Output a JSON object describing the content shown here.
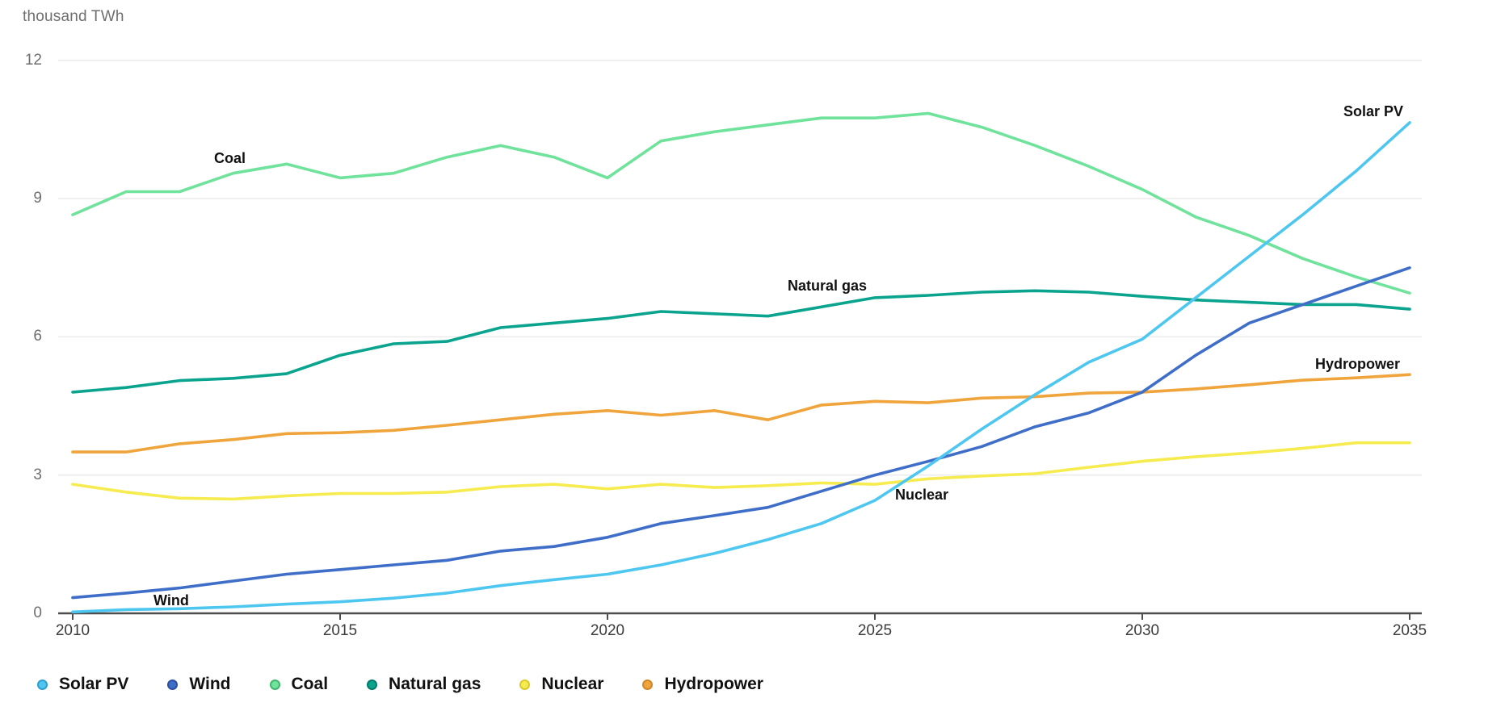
{
  "title": "thousand TWh",
  "chart_data": {
    "type": "line",
    "title": "",
    "xlabel": "",
    "ylabel": "thousand TWh",
    "x": [
      2010,
      2011,
      2012,
      2013,
      2014,
      2015,
      2016,
      2017,
      2018,
      2019,
      2020,
      2021,
      2022,
      2023,
      2024,
      2025,
      2026,
      2027,
      2028,
      2029,
      2030,
      2031,
      2032,
      2033,
      2034,
      2035
    ],
    "x_ticks": [
      2010,
      2015,
      2020,
      2025,
      2030,
      2035
    ],
    "y_ticks": [
      0,
      3,
      6,
      9,
      12
    ],
    "ylim": [
      0,
      12
    ],
    "xlim": [
      2010,
      2035
    ],
    "grid": true,
    "legend_position": "bottom",
    "series": [
      {
        "name": "Solar PV",
        "color": "#4ec7f0",
        "dot_border": "#2d9ecf",
        "values": [
          0.03,
          0.08,
          0.1,
          0.14,
          0.2,
          0.25,
          0.33,
          0.44,
          0.6,
          0.73,
          0.85,
          1.05,
          1.3,
          1.6,
          1.95,
          2.45,
          3.2,
          4.0,
          4.75,
          5.45,
          5.95,
          6.85,
          7.75,
          8.65,
          9.6,
          10.65
        ]
      },
      {
        "name": "Wind",
        "color": "#3f6ec9",
        "dot_border": "#2c4f9e",
        "values": [
          0.34,
          0.44,
          0.55,
          0.7,
          0.85,
          0.95,
          1.05,
          1.15,
          1.35,
          1.45,
          1.65,
          1.95,
          2.12,
          2.3,
          2.65,
          3.0,
          3.3,
          3.62,
          4.05,
          4.35,
          4.8,
          5.6,
          6.3,
          6.7,
          7.1,
          7.5
        ]
      },
      {
        "name": "Coal",
        "color": "#6fe29b",
        "dot_border": "#3fb56e",
        "values": [
          8.65,
          9.15,
          9.15,
          9.55,
          9.75,
          9.45,
          9.55,
          9.9,
          10.15,
          9.9,
          9.45,
          10.25,
          10.45,
          10.6,
          10.75,
          10.75,
          10.85,
          10.55,
          10.15,
          9.7,
          9.2,
          8.6,
          8.2,
          7.7,
          7.3,
          6.95
        ]
      },
      {
        "name": "Natural gas",
        "color": "#0aa48e",
        "dot_border": "#007a6d",
        "values": [
          4.8,
          4.9,
          5.05,
          5.1,
          5.2,
          5.6,
          5.85,
          5.9,
          6.2,
          6.3,
          6.4,
          6.55,
          6.5,
          6.45,
          6.65,
          6.85,
          6.9,
          6.97,
          7.0,
          6.97,
          6.88,
          6.8,
          6.75,
          6.7,
          6.7,
          6.6
        ]
      },
      {
        "name": "Nuclear",
        "color": "#f6eb4f",
        "dot_border": "#d9c929",
        "values": [
          2.8,
          2.63,
          2.5,
          2.48,
          2.55,
          2.6,
          2.6,
          2.63,
          2.75,
          2.8,
          2.7,
          2.8,
          2.73,
          2.77,
          2.83,
          2.8,
          2.92,
          2.98,
          3.03,
          3.17,
          3.3,
          3.4,
          3.48,
          3.58,
          3.7,
          3.7
        ]
      },
      {
        "name": "Hydropower",
        "color": "#f0a43c",
        "dot_border": "#d2862a",
        "values": [
          3.5,
          3.5,
          3.68,
          3.77,
          3.9,
          3.92,
          3.97,
          4.08,
          4.2,
          4.32,
          4.4,
          4.3,
          4.4,
          4.2,
          4.52,
          4.6,
          4.57,
          4.67,
          4.7,
          4.78,
          4.8,
          4.87,
          4.96,
          5.06,
          5.11,
          5.18
        ]
      }
    ]
  }
}
